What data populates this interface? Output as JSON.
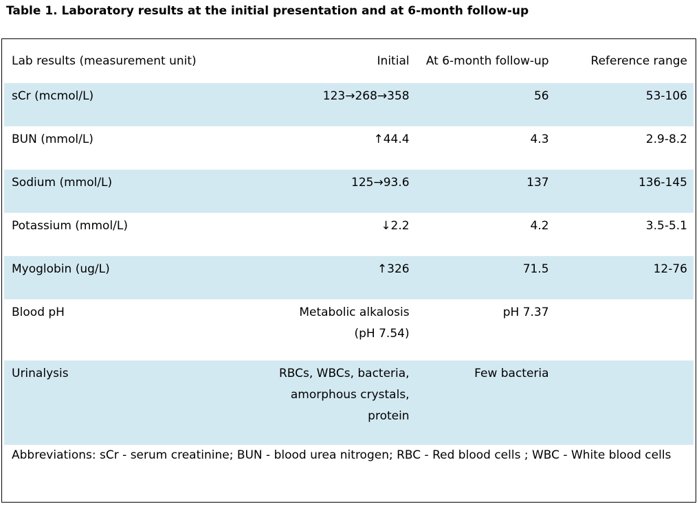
{
  "caption": "Table 1. Laboratory results at the initial presentation and at 6-month follow-up",
  "table": {
    "headers": [
      "Lab results (measurement unit)",
      "Initial",
      "At 6-month follow-up",
      "Reference range"
    ],
    "rows": [
      {
        "test": "sCr (mcmol/L)",
        "initial": "123→268→358",
        "followup": "56",
        "reference": "53-106"
      },
      {
        "test": "BUN (mmol/L)",
        "initial": "↑44.4",
        "followup": "4.3",
        "reference": "2.9-8.2"
      },
      {
        "test": "Sodium (mmol/L)",
        "initial": "125→93.6",
        "followup": "137",
        "reference": "136-145"
      },
      {
        "test": "Potassium (mmol/L)",
        "initial": "↓2.2",
        "followup": "4.2",
        "reference": "3.5-5.1"
      },
      {
        "test": "Myoglobin (ug/L)",
        "initial": "↑326",
        "followup": "71.5",
        "reference": "12-76"
      },
      {
        "test": "Blood pH",
        "initial_lines": [
          "Metabolic alkalosis",
          "(pH 7.54)"
        ],
        "followup": "pH 7.37",
        "reference": ""
      },
      {
        "test": "Urinalysis",
        "initial_lines": [
          "RBCs, WBCs, bacteria,",
          "amorphous crystals,",
          "protein"
        ],
        "followup": "Few bacteria",
        "reference": ""
      }
    ]
  },
  "abbreviations": "Abbreviations: sCr - serum creatinine; BUN - blood urea nitrogen; RBC - Red blood cells ; WBC - White blood cells"
}
